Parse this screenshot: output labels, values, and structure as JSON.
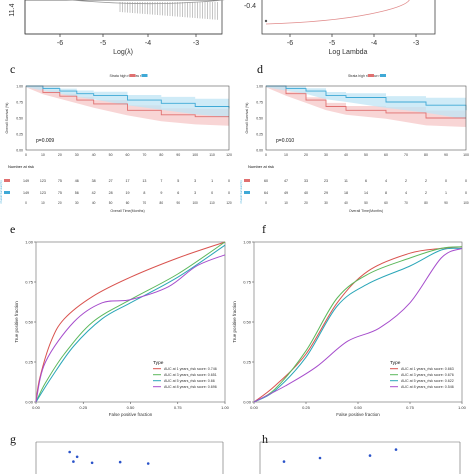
{
  "panel_letters": {
    "c": "c",
    "d": "d",
    "e": "e",
    "f": "f",
    "g": "g",
    "h": "h"
  },
  "colors": {
    "high_risk": "#e07070",
    "low_risk": "#3fa9d6",
    "high_fill": "#f5c7c7",
    "low_fill": "#bfe4f4",
    "roc_1y": "#d9534f",
    "roc_3y": "#5cb85c",
    "roc_5y": "#2aa6b8",
    "roc_8y": "#a64dcc"
  },
  "chart_data": [
    {
      "id": "lasso-cv",
      "type": "line",
      "xlabel": "Log(λ)",
      "xticks": [
        "-6",
        "-5",
        "-4",
        "-3"
      ],
      "ytick": "11.4"
    },
    {
      "id": "lasso-path",
      "type": "line",
      "xlabel": "Log Lambda",
      "xticks": [
        "-6",
        "-5",
        "-4",
        "-3"
      ],
      "ytick": "-0.4"
    },
    {
      "id": "km-train",
      "type": "line",
      "legend_text": "Strata  high risk  low risk",
      "ylabel": "Overall Survival (%)",
      "xlabel": "Overall Time(Months)",
      "pvalue": "p=0.009",
      "risk_title": "Number at risk",
      "yticks": [
        "1.00",
        "0.75",
        "0.50",
        "0.25",
        "0.00"
      ],
      "xticks": [
        "0",
        "10",
        "20",
        "30",
        "40",
        "50",
        "60",
        "70",
        "80",
        "90",
        "100",
        "110",
        "120"
      ],
      "series": [
        {
          "name": "high risk",
          "x": [
            0,
            10,
            20,
            30,
            40,
            60,
            80,
            100,
            120
          ],
          "y": [
            1.0,
            0.9,
            0.84,
            0.78,
            0.72,
            0.62,
            0.55,
            0.52,
            0.52
          ]
        },
        {
          "name": "low risk",
          "x": [
            0,
            10,
            20,
            30,
            40,
            60,
            80,
            100,
            120
          ],
          "y": [
            1.0,
            0.96,
            0.92,
            0.88,
            0.85,
            0.78,
            0.73,
            0.68,
            0.65
          ]
        }
      ],
      "risk_rows": [
        {
          "name": "high risk",
          "values": [
            "149",
            "123",
            "75",
            "46",
            "38",
            "27",
            "17",
            "13",
            "7",
            "5",
            "3",
            "1",
            "0"
          ]
        },
        {
          "name": "low risk",
          "values": [
            "149",
            "123",
            "75",
            "56",
            "42",
            "28",
            "19",
            "8",
            "9",
            "6",
            "3",
            "0",
            "0"
          ]
        }
      ]
    },
    {
      "id": "km-test",
      "type": "line",
      "legend_text": "Strata  high risk  low risk",
      "ylabel": "Overall Survival (%)",
      "xlabel": "Overall Time(Months)",
      "pvalue": "p=0.010",
      "risk_title": "Number at risk",
      "yticks": [
        "1.00",
        "0.75",
        "0.50",
        "0.25",
        "0.00"
      ],
      "xticks": [
        "0",
        "10",
        "20",
        "30",
        "40",
        "50",
        "60",
        "70",
        "80",
        "90",
        "100"
      ],
      "series": [
        {
          "name": "high risk",
          "x": [
            0,
            10,
            20,
            30,
            40,
            60,
            80,
            100
          ],
          "y": [
            1.0,
            0.88,
            0.78,
            0.68,
            0.62,
            0.58,
            0.5,
            0.5
          ]
        },
        {
          "name": "low risk",
          "x": [
            0,
            10,
            20,
            30,
            40,
            60,
            80,
            100
          ],
          "y": [
            1.0,
            0.96,
            0.92,
            0.85,
            0.82,
            0.75,
            0.7,
            0.62
          ]
        }
      ],
      "risk_rows": [
        {
          "name": "high risk",
          "values": [
            "60",
            "47",
            "33",
            "23",
            "11",
            "6",
            "4",
            "2",
            "2",
            "0",
            "0"
          ]
        },
        {
          "name": "low risk",
          "values": [
            "64",
            "49",
            "40",
            "29",
            "18",
            "14",
            "8",
            "4",
            "2",
            "1",
            "0"
          ]
        }
      ]
    },
    {
      "id": "roc-train",
      "type": "line",
      "ylabel": "True positive fraction",
      "xlabel": "False positive fraction",
      "xticks": [
        "0.00",
        "0.25",
        "0.50",
        "0.75",
        "1.00"
      ],
      "yticks": [
        "0.00",
        "0.25",
        "0.50",
        "0.75",
        "1.00"
      ],
      "legend_title": "Type",
      "series": [
        {
          "name": "AUC at 1 years_risk score: 0.746",
          "x": [
            0,
            0.02,
            0.08,
            0.15,
            0.3,
            0.5,
            0.75,
            1.0
          ],
          "y": [
            0,
            0.15,
            0.38,
            0.52,
            0.66,
            0.78,
            0.9,
            1.0
          ]
        },
        {
          "name": "AUC at 3 years_risk score: 0.651",
          "x": [
            0,
            0.05,
            0.15,
            0.3,
            0.5,
            0.75,
            1.0
          ],
          "y": [
            0,
            0.12,
            0.3,
            0.5,
            0.64,
            0.8,
            1.0
          ]
        },
        {
          "name": "AUC at 5 years_risk score: 0.66",
          "x": [
            0,
            0.08,
            0.2,
            0.35,
            0.5,
            0.75,
            1.0
          ],
          "y": [
            0,
            0.15,
            0.35,
            0.52,
            0.62,
            0.78,
            0.98
          ]
        },
        {
          "name": "AUC at 8 years_risk score: 0.696",
          "x": [
            0,
            0.05,
            0.2,
            0.35,
            0.5,
            0.7,
            0.85,
            1.0
          ],
          "y": [
            0,
            0.25,
            0.5,
            0.62,
            0.64,
            0.72,
            0.85,
            0.92
          ]
        }
      ]
    },
    {
      "id": "roc-test",
      "type": "line",
      "ylabel": "True positive fraction",
      "xlabel": "False positive fraction",
      "xticks": [
        "0.00",
        "0.25",
        "0.50",
        "0.75",
        "1.00"
      ],
      "yticks": [
        "0.00",
        "0.25",
        "0.50",
        "0.75",
        "1.00"
      ],
      "legend_title": "Type",
      "series": [
        {
          "name": "AUC at 1 years_risk score: 0.663",
          "x": [
            0,
            0.1,
            0.25,
            0.4,
            0.55,
            0.75,
            0.9,
            1.0
          ],
          "y": [
            0,
            0.1,
            0.3,
            0.62,
            0.82,
            0.93,
            0.96,
            0.97
          ]
        },
        {
          "name": "AUC at 3 years_risk score: 0.676",
          "x": [
            0,
            0.1,
            0.25,
            0.4,
            0.55,
            0.75,
            0.9,
            1.0
          ],
          "y": [
            0,
            0.08,
            0.32,
            0.65,
            0.8,
            0.9,
            0.96,
            0.97
          ]
        },
        {
          "name": "AUC at 5 years_risk score: 0.622",
          "x": [
            0,
            0.1,
            0.25,
            0.4,
            0.55,
            0.75,
            0.9,
            1.0
          ],
          "y": [
            0,
            0.07,
            0.28,
            0.6,
            0.74,
            0.85,
            0.95,
            0.96
          ]
        },
        {
          "name": "AUC at 8 years_risk score: 0.546",
          "x": [
            0,
            0.15,
            0.3,
            0.45,
            0.6,
            0.75,
            0.9,
            1.0
          ],
          "y": [
            0,
            0.1,
            0.22,
            0.38,
            0.46,
            0.62,
            0.9,
            0.96
          ]
        }
      ]
    },
    {
      "id": "scatter-g",
      "type": "scatter",
      "x": [
        0.18,
        0.22,
        0.2,
        0.3,
        0.45,
        0.6
      ],
      "y": [
        0.5,
        0.3,
        0.1,
        0.05,
        0.08,
        0.02
      ]
    },
    {
      "id": "scatter-h",
      "type": "scatter",
      "x": [
        0.12,
        0.3,
        0.55,
        0.68
      ],
      "y": [
        0.1,
        0.25,
        0.35,
        0.6
      ]
    }
  ]
}
